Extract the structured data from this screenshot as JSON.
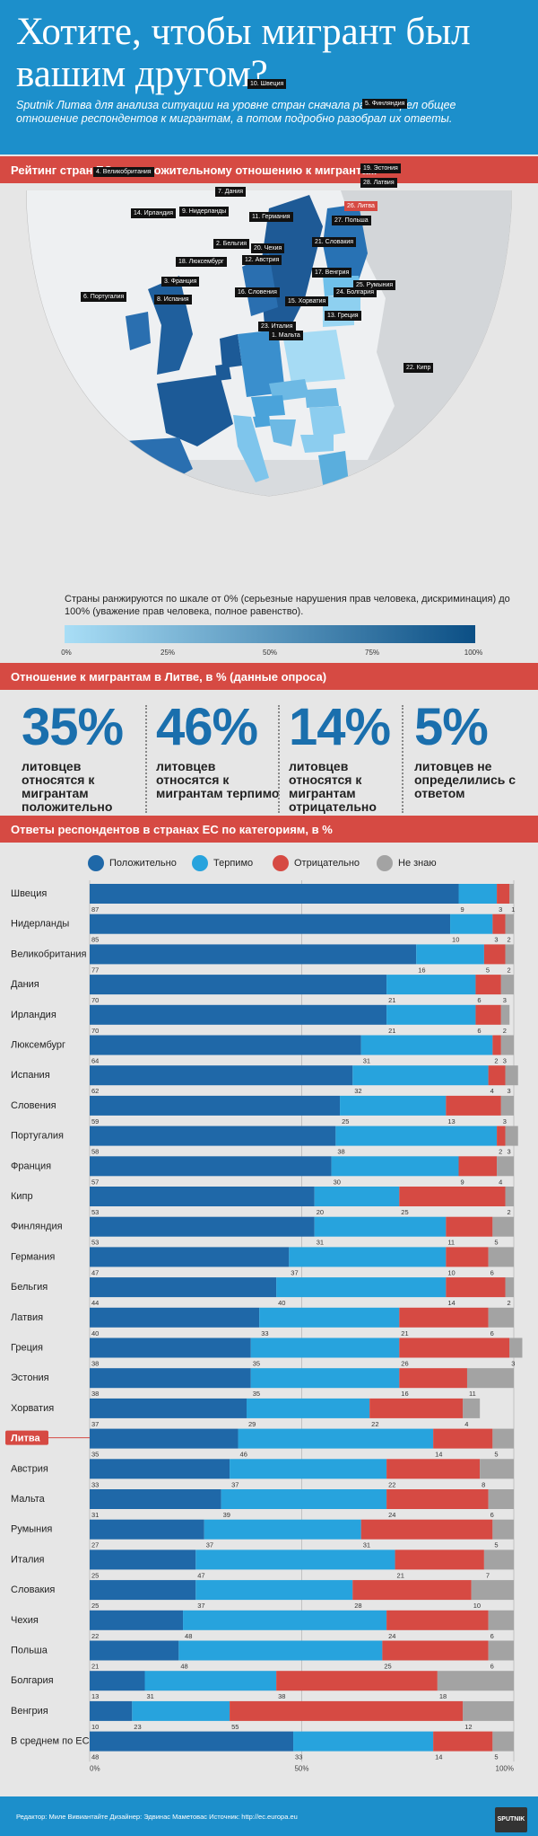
{
  "header": {
    "title": "Хотите, чтобы мигрант был вашим другом?",
    "intro": "Sputnik Литва для анализа ситуации на уровне стран сначала рассмотрел общее отношение респондентов к мигрантам, а потом подробно разобрал их ответы."
  },
  "map_section": {
    "title": "Рейтинг стран ЕС по положительному отношению к мигрантам",
    "rank_labels": [
      "1. Мальта",
      "2. Бельгия",
      "3. Франция",
      "4. Великобритания",
      "5. Финляндия",
      "6. Португалия",
      "7. Дания",
      "8. Испания",
      "9. Нидерланды",
      "10. Швеция",
      "11. Германия",
      "12. Австрия",
      "13. Греция",
      "14. Ирландия",
      "15. Хорватия",
      "16. Словения",
      "17. Венгрия",
      "18. Люксембург",
      "19. Эстония",
      "20. Чехия",
      "21. Словакия",
      "22. Кипр",
      "23. Италия",
      "24. Болгария",
      "25. Румыния",
      "26. Литва",
      "27. Польша",
      "28. Латвия"
    ],
    "scale_note": "Страны ранжируются по шкале от 0% (серьезные нарушения прав человека, дискриминация) до 100% (уважение прав человека, полное равенство).",
    "scale_ticks": [
      "0%",
      "25%",
      "50%",
      "75%",
      "100%"
    ],
    "colors": {
      "map_low": "#a9def6",
      "map_high": "#0b4f85",
      "highlight": "#d64a43"
    }
  },
  "lithuania_section": {
    "title": "Отношение к мигрантам в Литве, в % (данные опроса)",
    "stats": [
      {
        "value": "35%",
        "label": "литовцев относятся к мигрантам положительно"
      },
      {
        "value": "46%",
        "label": "литовцев относятся к мигрантам терпимо"
      },
      {
        "value": "14%",
        "label": "литовцев относятся к мигрантам отрицательно"
      },
      {
        "value": "5%",
        "label": "литовцев не определились с ответом"
      }
    ]
  },
  "answers_section": {
    "title": "Ответы респондентов в странах ЕС по категориям, в %"
  },
  "chart_data": {
    "type": "bar",
    "stacked": true,
    "orientation": "horizontal",
    "categories": [
      "Швеция",
      "Нидерланды",
      "Великобритания",
      "Дания",
      "Ирландия",
      "Люксембург",
      "Испания",
      "Словения",
      "Португалия",
      "Франция",
      "Кипр",
      "Финляндия",
      "Германия",
      "Бельгия",
      "Латвия",
      "Греция",
      "Эстония",
      "Хорватия",
      "Литва",
      "Австрия",
      "Мальта",
      "Румыния",
      "Италия",
      "Словакия",
      "Чехия",
      "Польша",
      "Болгария",
      "Венгрия",
      "В среднем по ЕС"
    ],
    "series": [
      {
        "name": "Положительно",
        "color": "#1f68a8",
        "values": [
          87,
          85,
          77,
          70,
          70,
          64,
          62,
          59,
          58,
          57,
          53,
          53,
          47,
          44,
          40,
          38,
          38,
          37,
          35,
          33,
          31,
          27,
          25,
          25,
          22,
          21,
          13,
          10,
          48
        ]
      },
      {
        "name": "Терпимо",
        "color": "#27a3dd",
        "values": [
          9,
          10,
          16,
          21,
          21,
          31,
          32,
          25,
          38,
          30,
          20,
          31,
          37,
          40,
          33,
          35,
          35,
          29,
          46,
          37,
          39,
          37,
          47,
          37,
          48,
          48,
          31,
          23,
          33
        ]
      },
      {
        "name": "Отрицательно",
        "color": "#d64a43",
        "values": [
          3,
          3,
          5,
          6,
          6,
          2,
          4,
          13,
          2,
          9,
          25,
          11,
          10,
          14,
          21,
          26,
          16,
          22,
          14,
          22,
          24,
          31,
          21,
          28,
          24,
          25,
          38,
          55,
          14
        ]
      },
      {
        "name": "Не знаю",
        "color": "#a3a3a3",
        "values": [
          1,
          2,
          2,
          3,
          2,
          3,
          3,
          3,
          3,
          4,
          2,
          5,
          6,
          2,
          6,
          3,
          11,
          4,
          5,
          8,
          6,
          5,
          7,
          10,
          6,
          6,
          18,
          12,
          5
        ]
      }
    ],
    "highlight_category": "Литва",
    "x_ticks": [
      "0%",
      "50%",
      "100%"
    ],
    "xlim": [
      0,
      100
    ],
    "legend_position": "top",
    "grid": true
  },
  "footer": {
    "credits": "Редактор: Миле Вивиантайте   Дизайнер: Эдвинас Маметовас   Источник: http://ec.europa.eu",
    "brand": "SPUTNIK"
  }
}
